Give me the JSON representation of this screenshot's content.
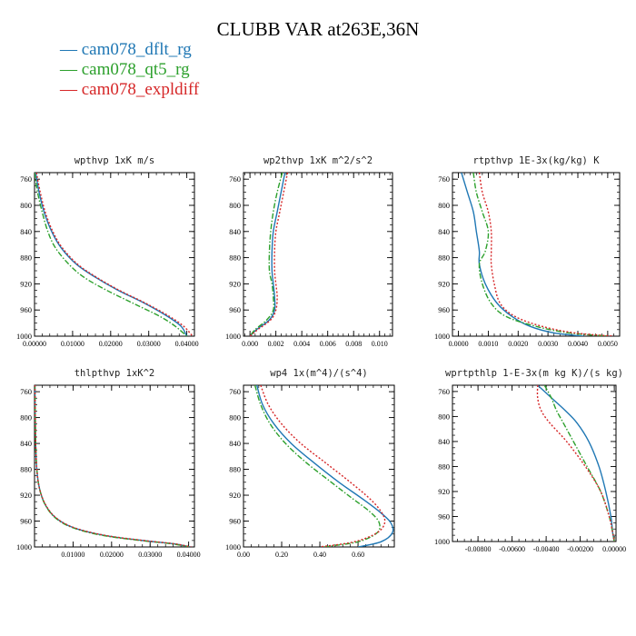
{
  "title": "CLUBB VAR at263E,36N",
  "legend": [
    {
      "name": "cam078_dflt_rg",
      "color": "#1f77b4",
      "dash": "solid"
    },
    {
      "name": "cam078_qt5_rg",
      "color": "#2ca02c",
      "dash": "dashdot"
    },
    {
      "name": "cam078_expldiff",
      "color": "#d62728",
      "dash": "dotted"
    }
  ],
  "chart_data": [
    {
      "type": "line",
      "title": "wpthvp   1xK m/s",
      "ylim": [
        1000,
        750
      ],
      "yticks": [
        760,
        800,
        840,
        880,
        920,
        960,
        1000
      ],
      "xlim": [
        0,
        0.042
      ],
      "xticks": [
        0,
        0.01,
        0.02,
        0.03,
        0.04
      ],
      "xticklabels": [
        "0.00000",
        "0.01000",
        "0.02000",
        "0.03000",
        "0.04000"
      ],
      "series": [
        {
          "name": "cam078_dflt_rg",
          "x": [
            0.0003,
            0.0012,
            0.0025,
            0.0045,
            0.007,
            0.011,
            0.016,
            0.022,
            0.029,
            0.035,
            0.0385,
            0.04
          ],
          "y": [
            750,
            780,
            810,
            840,
            865,
            890,
            910,
            930,
            950,
            970,
            985,
            1000
          ]
        },
        {
          "name": "cam078_qt5_rg",
          "x": [
            0.0,
            0.0008,
            0.002,
            0.0035,
            0.0055,
            0.009,
            0.013,
            0.019,
            0.026,
            0.033,
            0.037,
            0.04
          ],
          "y": [
            750,
            780,
            810,
            840,
            865,
            890,
            910,
            930,
            950,
            970,
            985,
            1000
          ]
        },
        {
          "name": "cam078_expldiff",
          "x": [
            0.0005,
            0.0015,
            0.0028,
            0.0048,
            0.0073,
            0.0113,
            0.0163,
            0.0223,
            0.0293,
            0.0355,
            0.0392,
            0.0415
          ],
          "y": [
            750,
            780,
            810,
            840,
            865,
            890,
            910,
            930,
            950,
            970,
            985,
            1000
          ]
        }
      ]
    },
    {
      "type": "line",
      "title": "wp2thvp   1xK m^2/s^2",
      "ylim": [
        1000,
        750
      ],
      "yticks": [
        760,
        800,
        840,
        880,
        920,
        960,
        1000
      ],
      "xlim": [
        -0.0005,
        0.011
      ],
      "xticks": [
        0,
        0.002,
        0.004,
        0.006,
        0.008,
        0.01
      ],
      "xticklabels": [
        "0.000",
        "0.002",
        "0.004",
        "0.006",
        "0.008",
        "0.010"
      ],
      "series": [
        {
          "name": "cam078_dflt_rg",
          "x": [
            0.0027,
            0.0024,
            0.0021,
            0.0018,
            0.0017,
            0.0017,
            0.0018,
            0.0019,
            0.0019,
            0.0015,
            0.0005,
            0.0
          ],
          "y": [
            750,
            780,
            810,
            840,
            870,
            900,
            920,
            940,
            960,
            975,
            990,
            1000
          ]
        },
        {
          "name": "cam078_qt5_rg",
          "x": [
            0.0025,
            0.0021,
            0.0018,
            0.0016,
            0.0015,
            0.0015,
            0.0017,
            0.0018,
            0.0018,
            0.0013,
            0.0004,
            0.0
          ],
          "y": [
            750,
            780,
            810,
            840,
            870,
            900,
            920,
            940,
            960,
            975,
            990,
            1000
          ]
        },
        {
          "name": "cam078_expldiff",
          "x": [
            0.0029,
            0.0026,
            0.0023,
            0.002,
            0.0019,
            0.0019,
            0.002,
            0.0021,
            0.002,
            0.0016,
            0.0006,
            0.0
          ],
          "y": [
            750,
            780,
            810,
            840,
            870,
            900,
            920,
            940,
            960,
            975,
            990,
            1000
          ]
        }
      ]
    },
    {
      "type": "line",
      "title": "rtpthvp   1E-3x(kg/kg) K",
      "ylim": [
        1000,
        750
      ],
      "yticks": [
        760,
        800,
        840,
        880,
        920,
        960,
        1000
      ],
      "xlim": [
        -0.0002,
        0.0054
      ],
      "xticks": [
        0,
        0.001,
        0.002,
        0.003,
        0.004,
        0.005
      ],
      "xticklabels": [
        "0.0000",
        "0.0010",
        "0.0020",
        "0.0030",
        "0.0040",
        "0.0050"
      ],
      "series": [
        {
          "name": "cam078_dflt_rg",
          "x": [
            0.0001,
            0.0003,
            0.0005,
            0.0006,
            0.0007,
            0.0007,
            0.0009,
            0.0013,
            0.0018,
            0.0024,
            0.0032,
            0.0042
          ],
          "y": [
            750,
            780,
            810,
            840,
            870,
            890,
            920,
            950,
            970,
            985,
            995,
            1000
          ]
        },
        {
          "name": "cam078_qt5_rg",
          "x": [
            0.0005,
            0.0006,
            0.0008,
            0.001,
            0.0009,
            0.0007,
            0.0008,
            0.0011,
            0.0016,
            0.0026,
            0.0037,
            0.005
          ],
          "y": [
            750,
            780,
            810,
            840,
            870,
            890,
            920,
            950,
            970,
            985,
            995,
            1000
          ]
        },
        {
          "name": "cam078_expldiff",
          "x": [
            0.0007,
            0.0008,
            0.001,
            0.0011,
            0.0011,
            0.0011,
            0.0012,
            0.0014,
            0.0019,
            0.0028,
            0.0039,
            0.0052
          ],
          "y": [
            750,
            780,
            810,
            840,
            870,
            890,
            920,
            950,
            970,
            985,
            995,
            1000
          ]
        }
      ]
    },
    {
      "type": "line",
      "title": "thlpthvp   1xK^2",
      "ylim": [
        1000,
        750
      ],
      "yticks": [
        760,
        800,
        840,
        880,
        920,
        960,
        1000
      ],
      "xlim": [
        0,
        0.0415
      ],
      "xticks": [
        0.01,
        0.02,
        0.03,
        0.04
      ],
      "xticklabels": [
        "0.01000",
        "0.02000",
        "0.03000",
        "0.04000"
      ],
      "series": [
        {
          "name": "cam078_dflt_rg",
          "x": [
            0.0001,
            0.0002,
            0.0003,
            0.0006,
            0.0013,
            0.0028,
            0.0055,
            0.01,
            0.018,
            0.028,
            0.036,
            0.0405
          ],
          "y": [
            750,
            800,
            840,
            880,
            910,
            935,
            955,
            970,
            982,
            990,
            995,
            1000
          ]
        },
        {
          "name": "cam078_qt5_rg",
          "x": [
            0.0001,
            0.0002,
            0.0003,
            0.0006,
            0.0013,
            0.0028,
            0.0054,
            0.0098,
            0.0175,
            0.0275,
            0.0355,
            0.0402
          ],
          "y": [
            750,
            800,
            840,
            880,
            910,
            935,
            955,
            970,
            982,
            990,
            995,
            1000
          ]
        },
        {
          "name": "cam078_expldiff",
          "x": [
            0.0001,
            0.0002,
            0.0003,
            0.0006,
            0.0013,
            0.0029,
            0.0056,
            0.0102,
            0.0182,
            0.0283,
            0.0362,
            0.0407
          ],
          "y": [
            750,
            800,
            840,
            880,
            910,
            935,
            955,
            970,
            982,
            990,
            995,
            1000
          ]
        }
      ]
    },
    {
      "type": "line",
      "title": "wp4   1x(m^4)/(s^4)",
      "ylim": [
        1000,
        750
      ],
      "yticks": [
        760,
        800,
        840,
        880,
        920,
        960,
        1000
      ],
      "xlim": [
        0,
        0.79
      ],
      "xticks": [
        0,
        0.2,
        0.4,
        0.6
      ],
      "xticklabels": [
        "0.00",
        "0.20",
        "0.40",
        "0.60"
      ],
      "series": [
        {
          "name": "cam078_dflt_rg",
          "x": [
            0.07,
            0.1,
            0.16,
            0.25,
            0.37,
            0.5,
            0.62,
            0.71,
            0.77,
            0.78,
            0.72,
            0.6
          ],
          "y": [
            750,
            780,
            810,
            840,
            870,
            900,
            925,
            945,
            962,
            978,
            992,
            1000
          ]
        },
        {
          "name": "cam078_qt5_rg",
          "x": [
            0.06,
            0.09,
            0.14,
            0.22,
            0.33,
            0.46,
            0.57,
            0.66,
            0.71,
            0.7,
            0.6,
            0.42
          ],
          "y": [
            750,
            780,
            810,
            840,
            870,
            900,
            925,
            945,
            962,
            978,
            992,
            1000
          ]
        },
        {
          "name": "cam078_expldiff",
          "x": [
            0.09,
            0.13,
            0.2,
            0.3,
            0.43,
            0.56,
            0.66,
            0.72,
            0.74,
            0.7,
            0.58,
            0.4
          ],
          "y": [
            750,
            780,
            810,
            840,
            870,
            900,
            925,
            945,
            962,
            978,
            992,
            1000
          ]
        }
      ]
    },
    {
      "type": "line",
      "title": "wprtpthlp   1-E-3x(m kg K)/(s kg)",
      "ylim": [
        1000,
        750
      ],
      "yticks": [
        760,
        800,
        840,
        880,
        920,
        960,
        1000
      ],
      "xlim": [
        -0.0095,
        0.0001
      ],
      "xticks": [
        -0.008,
        -0.006,
        -0.004,
        -0.002,
        0
      ],
      "xticklabels": [
        "-0.00800",
        "-0.00600",
        "-0.00400",
        "-0.00200",
        "0.00000"
      ],
      "series": [
        {
          "name": "cam078_dflt_rg",
          "x": [
            -0.0045,
            -0.0037,
            -0.0029,
            -0.0022,
            -0.0015,
            -0.0009,
            -0.0005,
            -0.0002,
            -0.0001,
            0.0
          ],
          "y": [
            750,
            770,
            790,
            810,
            840,
            880,
            920,
            960,
            985,
            1000
          ]
        },
        {
          "name": "cam078_qt5_rg",
          "x": [
            -0.0041,
            -0.0037,
            -0.0034,
            -0.003,
            -0.0024,
            -0.0016,
            -0.0008,
            -0.0003,
            -0.0001,
            0.0
          ],
          "y": [
            750,
            770,
            790,
            810,
            840,
            880,
            920,
            960,
            985,
            1000
          ]
        },
        {
          "name": "cam078_expldiff",
          "x": [
            -0.0045,
            -0.0045,
            -0.0043,
            -0.0038,
            -0.0028,
            -0.0017,
            -0.0008,
            -0.0003,
            -0.0001,
            0.0
          ],
          "y": [
            750,
            770,
            790,
            810,
            840,
            880,
            920,
            960,
            985,
            1000
          ]
        }
      ]
    }
  ]
}
